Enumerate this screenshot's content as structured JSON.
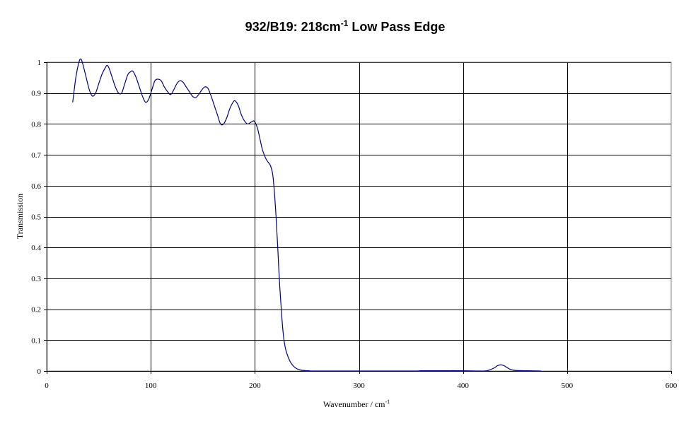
{
  "chart_data": {
    "type": "line",
    "title": "932/B19: 218cm",
    "title_superscript": "-1",
    "title_suffix": " Low Pass Edge",
    "xlabel": "Wavenumber / cm",
    "xlabel_superscript": "-1",
    "ylabel": "Transmission",
    "xlim": [
      0,
      600
    ],
    "ylim": [
      0,
      1
    ],
    "x_ticks": [
      0,
      100,
      200,
      300,
      400,
      500,
      600
    ],
    "x_tick_labels": [
      "0",
      "100",
      "200",
      "300",
      "400",
      "500",
      "600"
    ],
    "y_ticks": [
      0,
      0.1,
      0.2,
      0.3,
      0.4,
      0.5,
      0.6,
      0.7,
      0.8,
      0.9,
      1
    ],
    "y_tick_labels": [
      "0",
      "0.1",
      "0.2",
      "0.3",
      "0.4",
      "0.5",
      "0.6",
      "0.7",
      "0.8",
      "0.9",
      "1"
    ],
    "grid": true,
    "legend": "none",
    "series": [
      {
        "color": "#000080",
        "x": [
          25,
          28,
          31,
          33,
          35,
          38,
          41,
          44,
          47,
          50,
          53,
          56,
          58,
          60,
          63,
          66,
          69,
          72,
          75,
          78,
          81,
          83,
          86,
          89,
          92,
          95,
          98,
          101,
          104,
          107,
          110,
          113,
          116,
          119,
          122,
          125,
          128,
          131,
          134,
          137,
          140,
          143,
          146,
          149,
          152,
          155,
          158,
          161,
          164,
          167,
          170,
          173,
          176,
          179,
          181,
          184,
          187,
          190,
          193,
          196,
          199,
          201,
          203,
          205,
          207,
          209,
          211,
          213,
          215,
          217,
          218,
          219,
          220,
          221,
          222,
          223,
          224,
          225,
          226,
          227,
          228,
          229,
          230,
          232,
          234,
          236,
          238,
          240,
          243,
          246,
          250,
          255,
          260,
          265,
          270,
          350,
          360,
          380,
          400,
          420,
          425,
          430,
          433,
          436,
          439,
          442,
          445,
          450,
          460,
          475
        ],
        "y": [
          0.87,
          0.95,
          1.0,
          1.01,
          0.99,
          0.95,
          0.91,
          0.89,
          0.9,
          0.93,
          0.96,
          0.98,
          0.99,
          0.98,
          0.95,
          0.92,
          0.9,
          0.9,
          0.93,
          0.96,
          0.97,
          0.97,
          0.95,
          0.92,
          0.89,
          0.87,
          0.88,
          0.91,
          0.94,
          0.945,
          0.94,
          0.92,
          0.905,
          0.895,
          0.91,
          0.93,
          0.94,
          0.935,
          0.92,
          0.905,
          0.89,
          0.885,
          0.895,
          0.91,
          0.92,
          0.915,
          0.89,
          0.86,
          0.83,
          0.8,
          0.8,
          0.82,
          0.85,
          0.87,
          0.875,
          0.86,
          0.83,
          0.81,
          0.8,
          0.805,
          0.81,
          0.8,
          0.78,
          0.75,
          0.72,
          0.7,
          0.685,
          0.675,
          0.665,
          0.64,
          0.61,
          0.57,
          0.52,
          0.46,
          0.4,
          0.33,
          0.27,
          0.22,
          0.17,
          0.13,
          0.1,
          0.08,
          0.065,
          0.045,
          0.03,
          0.02,
          0.013,
          0.008,
          0.004,
          0.002,
          0.001,
          0.0,
          0.0,
          0.0,
          0.0,
          0.0,
          0.001,
          0.001,
          0.001,
          0.0,
          0.003,
          0.01,
          0.017,
          0.02,
          0.018,
          0.012,
          0.006,
          0.002,
          0.001,
          0.0
        ]
      }
    ]
  }
}
